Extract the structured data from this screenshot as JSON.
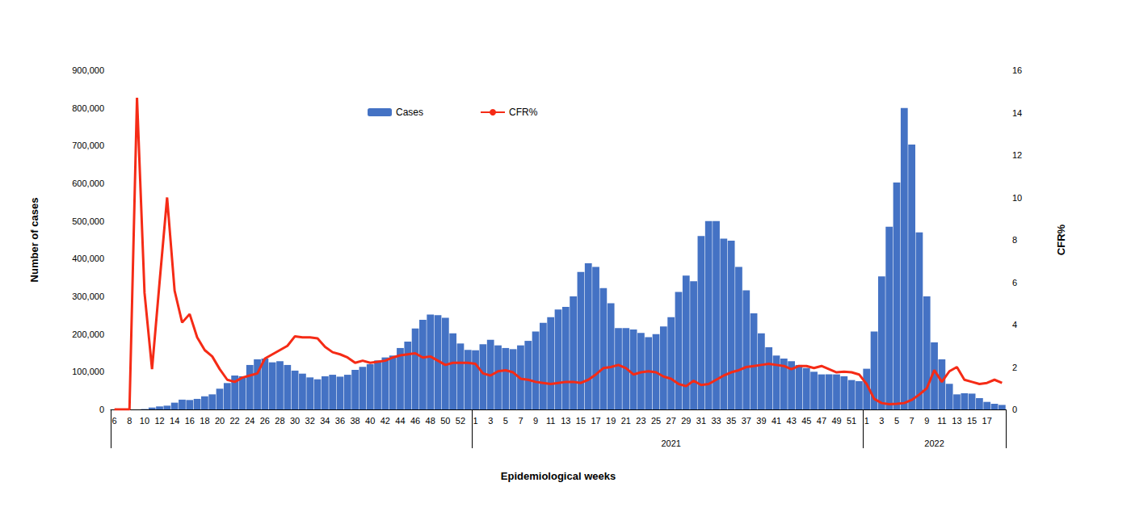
{
  "chart_data": {
    "type": "bar",
    "x_label": "Epidemiological weeks",
    "y_label": "Number of cases",
    "y2_label": "CFR%",
    "categories": [
      "6",
      null,
      "8",
      null,
      "10",
      null,
      "12",
      null,
      "14",
      null,
      "16",
      null,
      "18",
      null,
      "20",
      null,
      "22",
      null,
      "24",
      null,
      "26",
      null,
      "28",
      null,
      "30",
      null,
      "32",
      null,
      "34",
      null,
      "36",
      null,
      "38",
      null,
      "40",
      null,
      "42",
      null,
      "44",
      null,
      "46",
      null,
      "48",
      null,
      "50",
      null,
      "52",
      null,
      "1",
      null,
      "3",
      null,
      "5",
      null,
      "7",
      null,
      "9",
      null,
      "11",
      null,
      "13",
      null,
      "15",
      null,
      "17",
      null,
      "19",
      null,
      "21",
      null,
      "23",
      null,
      "25",
      null,
      "27",
      null,
      "29",
      null,
      "31",
      null,
      "33",
      null,
      "35",
      null,
      "37",
      null,
      "39",
      null,
      "41",
      null,
      "43",
      null,
      "45",
      null,
      "47",
      null,
      "49",
      null,
      "51",
      null,
      "1",
      null,
      "3",
      null,
      "5",
      null,
      "7",
      null,
      "9",
      null,
      "11",
      null,
      "13",
      null,
      "15",
      null,
      "17",
      null,
      null
    ],
    "groups": [
      {
        "label": null,
        "count": 48
      },
      {
        "label": "2021",
        "count": 52
      },
      {
        "label": "2022",
        "count": 19
      }
    ],
    "series": [
      {
        "name": "Cases",
        "type": "bar",
        "color": "#4472c4",
        "values": [
          0,
          0,
          0,
          0,
          1000,
          5000,
          8000,
          10000,
          18000,
          26000,
          25000,
          28000,
          35000,
          40000,
          55000,
          70000,
          90000,
          88000,
          118000,
          133000,
          135000,
          125000,
          128000,
          118000,
          103000,
          95000,
          85000,
          80000,
          88000,
          92000,
          87000,
          92000,
          105000,
          113000,
          120000,
          130000,
          138000,
          143000,
          163000,
          180000,
          215000,
          238000,
          252000,
          250000,
          243000,
          202000,
          175000,
          158000,
          157000,
          173000,
          185000,
          170000,
          163000,
          160000,
          170000,
          182000,
          207000,
          230000,
          245000,
          265000,
          272000,
          300000,
          365000,
          388000,
          378000,
          322000,
          282000,
          216000,
          216000,
          212000,
          203000,
          192000,
          200000,
          220000,
          245000,
          312000,
          355000,
          340000,
          460000,
          500000,
          500000,
          453000,
          448000,
          378000,
          316000,
          255000,
          202000,
          165000,
          143000,
          135000,
          128000,
          118000,
          110000,
          100000,
          93000,
          93000,
          93000,
          88000,
          78000,
          75000,
          108000,
          207000,
          353000,
          485000,
          602000,
          800000,
          703000,
          470000,
          300000,
          178000,
          133000,
          68000,
          40000,
          43000,
          42000,
          30000,
          20000,
          15000,
          12000
        ]
      },
      {
        "name": "CFR%",
        "type": "line",
        "color": "#f52b16",
        "axis": "y2",
        "values": [
          0,
          0,
          0,
          14.7,
          5.5,
          1.9,
          6,
          10,
          5.6,
          4.1,
          4.5,
          3.4,
          2.8,
          2.5,
          1.9,
          1.4,
          1.3,
          1.5,
          1.6,
          1.7,
          2.4,
          2.6,
          2.8,
          3,
          3.45,
          3.4,
          3.4,
          3.35,
          2.95,
          2.7,
          2.6,
          2.45,
          2.2,
          2.3,
          2.2,
          2.25,
          2.3,
          2.45,
          2.55,
          2.6,
          2.65,
          2.45,
          2.5,
          2.3,
          2.1,
          2.2,
          2.2,
          2.2,
          2.15,
          1.7,
          1.6,
          1.8,
          1.85,
          1.75,
          1.45,
          1.4,
          1.3,
          1.25,
          1.2,
          1.25,
          1.3,
          1.3,
          1.25,
          1.4,
          1.65,
          1.95,
          2.0,
          2.1,
          1.95,
          1.65,
          1.75,
          1.8,
          1.75,
          1.55,
          1.45,
          1.2,
          1.1,
          1.35,
          1.15,
          1.2,
          1.4,
          1.6,
          1.75,
          1.85,
          2.0,
          2.05,
          2.1,
          2.15,
          2.1,
          2.05,
          1.9,
          2.05,
          2.05,
          1.95,
          2.05,
          1.9,
          1.75,
          1.78,
          1.75,
          1.65,
          1.2,
          0.5,
          0.3,
          0.25,
          0.27,
          0.3,
          0.45,
          0.7,
          1.0,
          1.85,
          1.3,
          1.8,
          2.0,
          1.4,
          1.3,
          1.2,
          1.25,
          1.4,
          1.25
        ]
      }
    ],
    "ylim": [
      0,
      900000
    ],
    "yticks": [
      0,
      {
        "value": 100000,
        "label": "100,000"
      },
      {
        "value": 200000,
        "label": "200,000"
      },
      {
        "value": 300000,
        "label": "300,000"
      },
      {
        "value": 400000,
        "label": "400,000"
      },
      {
        "value": 500000,
        "label": "500,000"
      },
      {
        "value": 600000,
        "label": "600,000"
      },
      {
        "value": 700000,
        "label": "700,000"
      },
      {
        "value": 800000,
        "label": "800,000"
      },
      {
        "value": 900000,
        "label": "900,000"
      }
    ],
    "y2lim": [
      0,
      16
    ],
    "y2ticks": [
      0,
      2,
      4,
      6,
      8,
      10,
      12,
      14,
      16
    ],
    "grid": false,
    "legend": "top"
  }
}
